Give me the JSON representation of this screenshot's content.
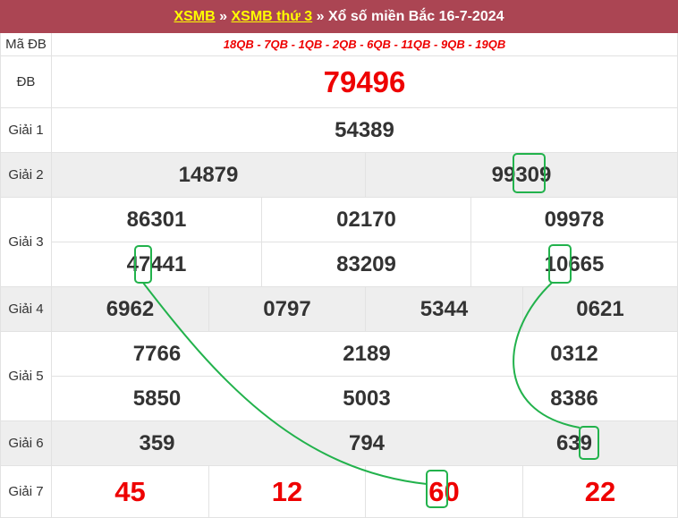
{
  "header": {
    "link1": "XSMB",
    "sep1": " » ",
    "link2": "XSMB thứ 3",
    "sep2": " » ",
    "title": "Xổ số miền Bắc 16-7-2024"
  },
  "labels": {
    "madb": "Mã ĐB",
    "db": "ĐB",
    "g1": "Giải 1",
    "g2": "Giải 2",
    "g3": "Giải 3",
    "g4": "Giải 4",
    "g5": "Giải 5",
    "g6": "Giải 6",
    "g7": "Giải 7"
  },
  "madb": "18QB - 7QB - 1QB - 2QB - 6QB - 11QB - 9QB - 19QB",
  "db": "79496",
  "g1": "54389",
  "g2": [
    "14879",
    "99309"
  ],
  "g3": [
    "86301",
    "02170",
    "09978",
    "47441",
    "83209",
    "10665"
  ],
  "g4": [
    "6962",
    "0797",
    "5344",
    "0621"
  ],
  "g5": [
    "7766",
    "2189",
    "0312",
    "5850",
    "5003",
    "8386"
  ],
  "g6": [
    "359",
    "794",
    "639"
  ],
  "g7": [
    "45",
    "12",
    "60",
    "22"
  ],
  "highlight_color": "#22b24c"
}
